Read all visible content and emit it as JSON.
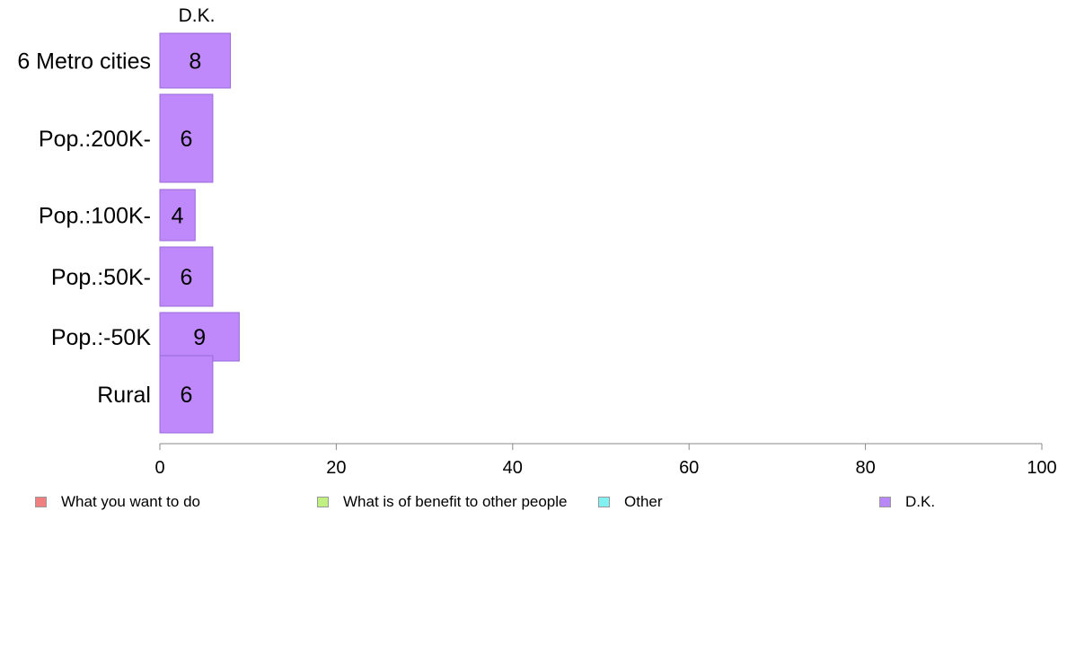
{
  "chart_data": {
    "type": "bar",
    "orientation": "horizontal",
    "column_label": "D.K.",
    "categories": [
      "6 Metro cities",
      "Pop.:200K-",
      "Pop.:100K-",
      "Pop.:50K-",
      "Pop.:-50K",
      "Rural"
    ],
    "values": [
      8,
      6,
      4,
      6,
      9,
      6
    ],
    "value_labels": [
      "8",
      "6",
      "4",
      "6",
      "9",
      "6"
    ],
    "xlim": [
      0,
      100
    ],
    "xticks": [
      "0",
      "20",
      "40",
      "60",
      "80",
      "100"
    ],
    "grid": false,
    "legend_position": "bottom",
    "legend": [
      {
        "label": "What you want to do",
        "color": "#f08080"
      },
      {
        "label": "What is of benefit to other people",
        "color": "#c0f080"
      },
      {
        "label": "Other",
        "color": "#80f0f0"
      },
      {
        "label": "D.K.",
        "color": "#b888f8"
      }
    ],
    "bar_color": "#bf88fb",
    "bar_stroke": "#9a6ad8",
    "axis_color": "#888888"
  }
}
